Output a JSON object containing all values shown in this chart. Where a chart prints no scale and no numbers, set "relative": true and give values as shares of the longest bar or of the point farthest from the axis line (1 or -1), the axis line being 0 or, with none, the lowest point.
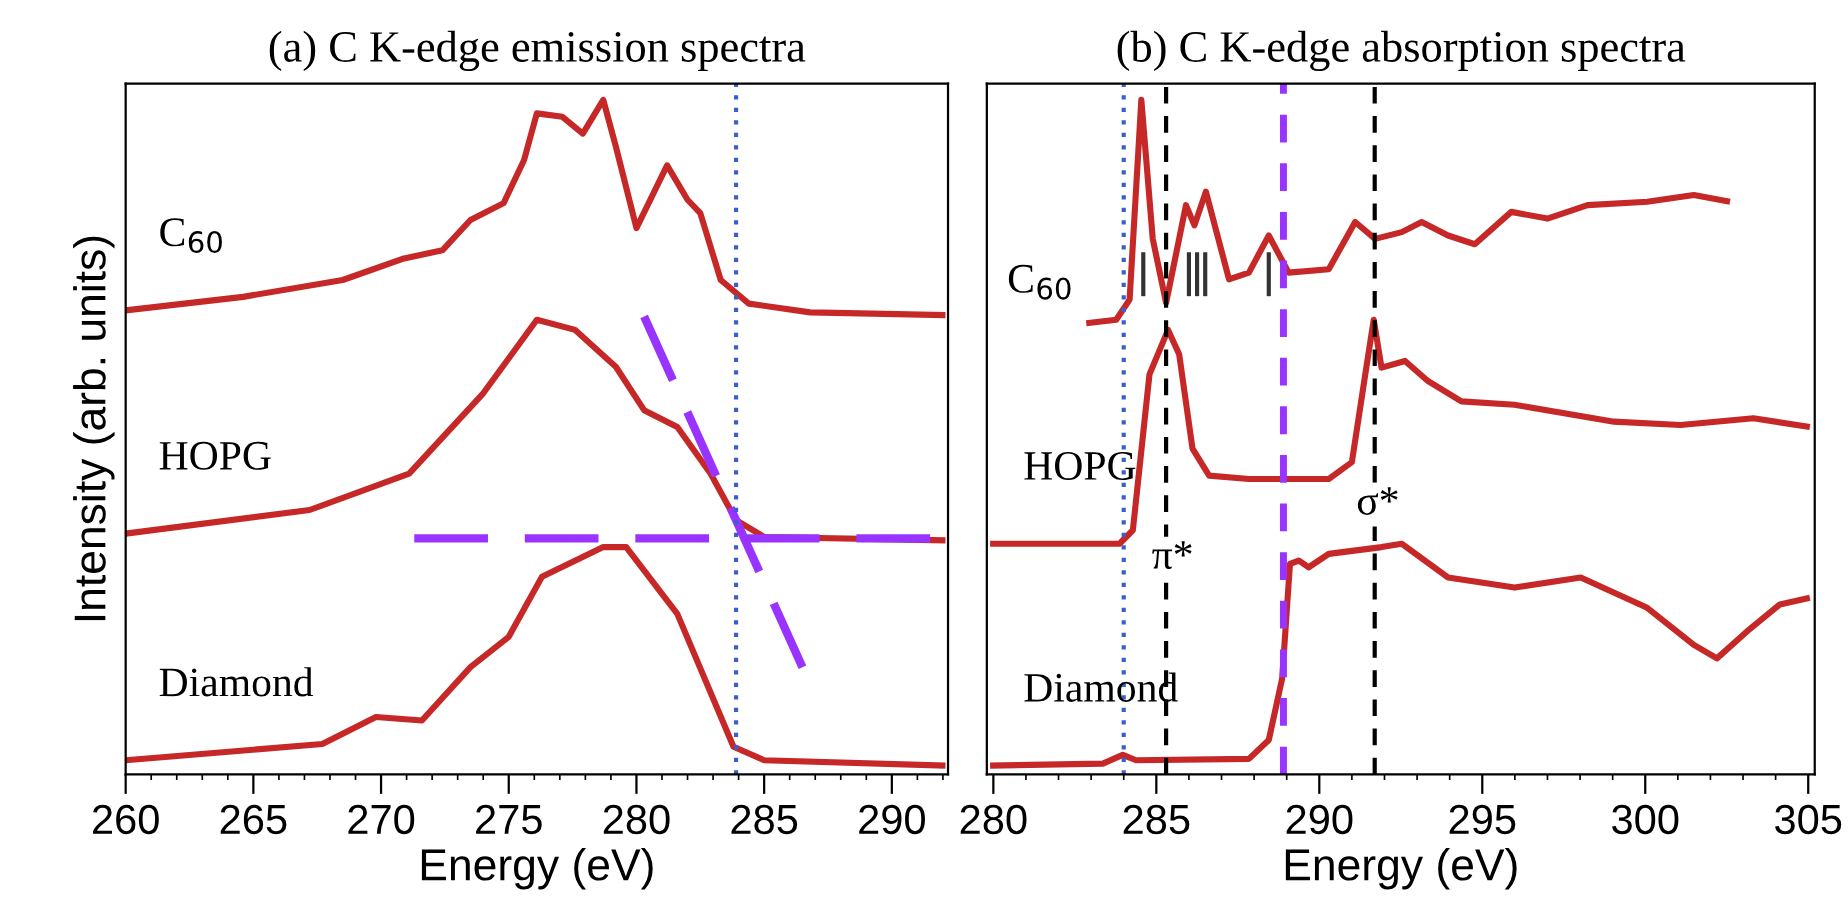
{
  "chart_data": [
    {
      "type": "line",
      "title": "(a) C K-edge emission spectra",
      "xlabel": "Energy (eV)",
      "ylabel": "Intensity (arb. units)",
      "relative": true,
      "xlim": [
        260,
        292.2
      ],
      "xticks": [
        260,
        265,
        270,
        275,
        280,
        285,
        290
      ],
      "grid": false,
      "legend": false,
      "tick_labels": "x",
      "series": [
        {
          "name": "C$_{60}$",
          "color": "#c62828",
          "x": [
            260,
            264.6,
            268.5,
            270.9,
            272.4,
            273.5,
            274.8,
            275.6,
            276.1,
            277.1,
            277.9,
            278.7,
            279.2,
            280.0,
            281.2,
            282.0,
            282.5,
            283.3,
            284.4,
            286.8,
            292.1
          ],
          "values": [
            0.688,
            0.708,
            0.733,
            0.765,
            0.777,
            0.822,
            0.847,
            0.911,
            0.98,
            0.975,
            0.95,
            1.0,
            0.93,
            0.81,
            0.903,
            0.852,
            0.832,
            0.733,
            0.698,
            0.685,
            0.681
          ]
        },
        {
          "name": "HOPG",
          "color": "#c62828",
          "x": [
            260,
            267.2,
            271.1,
            274.0,
            276.1,
            277.6,
            279.2,
            280.3,
            281.6,
            282.9,
            283.9,
            285.0,
            292.1
          ],
          "values": [
            0.357,
            0.392,
            0.446,
            0.565,
            0.674,
            0.659,
            0.604,
            0.54,
            0.515,
            0.446,
            0.377,
            0.352,
            0.347
          ]
        },
        {
          "name": "Diamond",
          "color": "#c62828",
          "x": [
            260,
            267.7,
            269.8,
            271.6,
            273.5,
            275.0,
            276.3,
            278.7,
            279.6,
            281.6,
            283.8,
            285.0,
            292.1
          ],
          "values": [
            0.021,
            0.045,
            0.085,
            0.08,
            0.159,
            0.204,
            0.293,
            0.337,
            0.337,
            0.238,
            0.041,
            0.021,
            0.013
          ]
        },
        {
          "color": "#9933ff",
          "line_style": "dashed",
          "x": [
            271.3,
            291.5
          ],
          "values": [
            0.35,
            0.35
          ]
        },
        {
          "color": "#9933ff",
          "line_style": "dashed",
          "x": [
            280.3,
            286.5
          ],
          "values": [
            0.679,
            0.159
          ]
        }
      ],
      "ref_lines": [
        {
          "axis": "x",
          "value": 283.9,
          "color": "#3a5fcd",
          "line_style": "dotted"
        }
      ]
    },
    {
      "type": "line",
      "title": "(b) C K-edge absorption spectra",
      "xlabel": "Energy (eV)",
      "relative": true,
      "xlim": [
        279.8,
        305.2
      ],
      "xticks": [
        280,
        285,
        290,
        295,
        300,
        305
      ],
      "grid": false,
      "legend": false,
      "tick_labels": "x",
      "series": [
        {
          "name": "C$_{60}$",
          "color": "#c62828",
          "x": [
            282.85,
            283.77,
            284.18,
            284.54,
            284.89,
            285.3,
            285.91,
            286.17,
            286.52,
            287.23,
            287.84,
            288.45,
            289.06,
            290.29,
            291.1,
            291.71,
            292.53,
            293.14,
            293.95,
            294.77,
            295.89,
            297.0,
            298.23,
            300.06,
            301.49,
            302.6
          ],
          "values": [
            0.669,
            0.674,
            0.704,
            1.0,
            0.794,
            0.699,
            0.844,
            0.814,
            0.864,
            0.734,
            0.744,
            0.799,
            0.744,
            0.749,
            0.819,
            0.794,
            0.804,
            0.819,
            0.799,
            0.786,
            0.834,
            0.824,
            0.844,
            0.849,
            0.859,
            0.849
          ]
        },
        {
          "name": "HOPG",
          "color": "#c62828",
          "x": [
            279.9,
            283.87,
            284.28,
            284.79,
            285.36,
            285.7,
            286.11,
            286.62,
            287.84,
            290.29,
            291.0,
            291.41,
            291.67,
            291.91,
            292.63,
            293.34,
            294.36,
            295.99,
            299.04,
            301.08,
            303.32,
            305.05
          ],
          "values": [
            0.342,
            0.342,
            0.362,
            0.593,
            0.659,
            0.623,
            0.483,
            0.443,
            0.438,
            0.438,
            0.463,
            0.593,
            0.674,
            0.603,
            0.613,
            0.583,
            0.553,
            0.548,
            0.523,
            0.518,
            0.528,
            0.515
          ]
        },
        {
          "name": "Diamond",
          "color": "#c62828",
          "x": [
            279.9,
            283.36,
            283.97,
            284.38,
            287.84,
            288.45,
            288.86,
            289.1,
            289.37,
            289.67,
            290.29,
            291.91,
            292.53,
            293.95,
            295.99,
            298.02,
            300.06,
            301.49,
            302.2,
            303.12,
            304.13,
            305.05
          ],
          "values": [
            0.013,
            0.016,
            0.029,
            0.021,
            0.023,
            0.051,
            0.142,
            0.312,
            0.317,
            0.307,
            0.327,
            0.337,
            0.342,
            0.292,
            0.277,
            0.292,
            0.247,
            0.192,
            0.172,
            0.212,
            0.252,
            0.262
          ]
        },
        {
          "color": "#333333",
          "x": [
            284.6,
            284.6
          ],
          "values": [
            0.709,
            0.774
          ]
        },
        {
          "color": "#333333",
          "x": [
            286.0,
            286.0
          ],
          "values": [
            0.709,
            0.774
          ]
        },
        {
          "color": "#333333",
          "x": [
            286.25,
            286.25
          ],
          "values": [
            0.709,
            0.774
          ]
        },
        {
          "color": "#333333",
          "x": [
            286.5,
            286.5
          ],
          "values": [
            0.709,
            0.774
          ]
        },
        {
          "color": "#333333",
          "x": [
            288.45,
            288.45
          ],
          "values": [
            0.709,
            0.774
          ]
        }
      ],
      "ref_lines": [
        {
          "axis": "x",
          "value": 284.0,
          "color": "#3a5fcd",
          "line_style": "dotted"
        },
        {
          "axis": "x",
          "value": 285.3,
          "color": "#000000",
          "line_style": "dashed"
        },
        {
          "axis": "x",
          "value": 291.7,
          "color": "#000000",
          "line_style": "dashed"
        },
        {
          "axis": "x",
          "value": 288.9,
          "color": "#9933ff",
          "line_style": "dashed"
        }
      ],
      "annotations": [
        {
          "text": "π*",
          "x": 285.5,
          "y": 0.32
        },
        {
          "text": "σ*",
          "x": 291.8,
          "y": 0.4
        }
      ]
    }
  ]
}
